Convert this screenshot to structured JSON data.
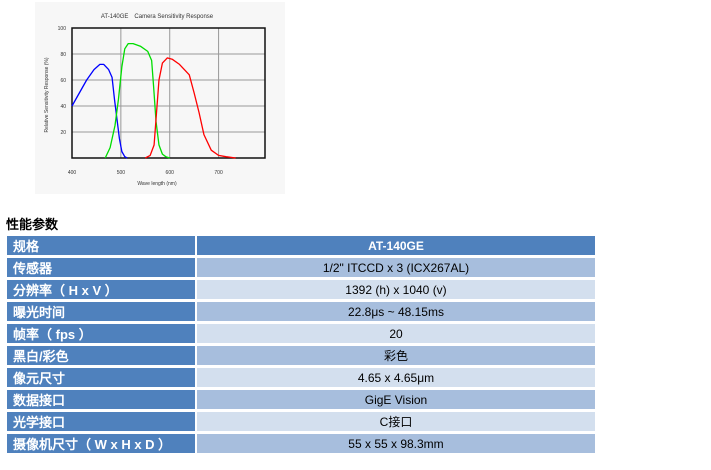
{
  "chart_data": {
    "type": "line",
    "title": "AT-140GE　Camera Sensitivity Response",
    "xlabel": "Wave length  (nm)",
    "ylabel": "Relative Sensitivity Response (%)",
    "xlim": [
      400,
      795
    ],
    "ylim": [
      0,
      100
    ],
    "xticks": [
      400,
      500,
      600,
      700
    ],
    "yticks": [
      20,
      40,
      60,
      80,
      100
    ],
    "grid": true,
    "series": [
      {
        "color": "#0000ff",
        "x": [
          400,
          415,
          430,
          445,
          457,
          465,
          475,
          482,
          487,
          492,
          497,
          502,
          508,
          513
        ],
        "y": [
          40,
          50,
          60,
          68,
          72,
          72,
          68,
          62,
          45,
          30,
          15,
          5,
          1,
          0
        ]
      },
      {
        "color": "#00dd00",
        "x": [
          468,
          478,
          488,
          495,
          502,
          508,
          515,
          525,
          540,
          555,
          563,
          567,
          572,
          578,
          585,
          592,
          600
        ],
        "y": [
          0,
          8,
          25,
          45,
          70,
          84,
          88,
          88,
          86,
          82,
          75,
          55,
          28,
          10,
          3,
          1,
          0
        ]
      },
      {
        "color": "#ff0000",
        "x": [
          550,
          560,
          568,
          573,
          578,
          585,
          595,
          605,
          620,
          640,
          650,
          660,
          670,
          685,
          700,
          715,
          735
        ],
        "y": [
          0,
          2,
          10,
          35,
          60,
          73,
          77,
          76,
          72,
          64,
          50,
          35,
          18,
          6,
          2,
          1,
          0
        ]
      }
    ]
  },
  "section_title": "性能参数",
  "table": {
    "header": {
      "key": "规格",
      "value": "AT-140GE"
    },
    "rows": [
      {
        "key": "传感器",
        "value": "1/2\" ITCCD x 3 (ICX267AL)"
      },
      {
        "key": "分辨率（ H x V ）",
        "value": "1392 (h) x 1040 (v)"
      },
      {
        "key": "曝光时间",
        "value": "22.8μs ~ 48.15ms"
      },
      {
        "key": "帧率（ fps ）",
        "value": "20"
      },
      {
        "key": "黑白/彩色",
        "value": "彩色"
      },
      {
        "key": "像元尺寸",
        "value": "4.65 x 4.65μm"
      },
      {
        "key": "数据接口",
        "value": "GigE Vision"
      },
      {
        "key": "光学接口",
        "value": "C接口"
      },
      {
        "key": "摄像机尺寸（ W x H x D ）",
        "value": "55 x 55 x 98.3mm"
      }
    ]
  }
}
